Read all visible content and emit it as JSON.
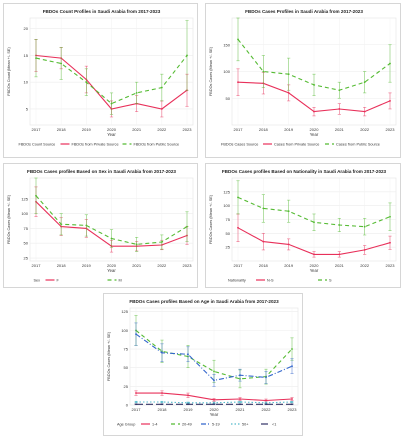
{
  "chart_data": [
    {
      "type": "line",
      "title": "FBDOs Count Profiles in Saudi Arabia from 2017-2023",
      "xlabel": "Year",
      "ylabel": "FBDOs Count (Mean +/- SE)",
      "categories": [
        "2017",
        "2018",
        "2019",
        "2020",
        "2021",
        "2022",
        "2023"
      ],
      "ylim": [
        2,
        22
      ],
      "yticks": [
        5,
        10,
        15,
        20
      ],
      "legend_title": "FBDOs Count Source",
      "legend_position": "bottom",
      "series": [
        {
          "name": "FBDOs from Private Source",
          "color": "#e8305a",
          "dash": "solid",
          "values": [
            15,
            14.5,
            10.5,
            5,
            6,
            5,
            8.5
          ],
          "errors": [
            3,
            2,
            2.5,
            1.5,
            1.5,
            1.5,
            3
          ]
        },
        {
          "name": "FBDOs from Public Source",
          "color": "#55bb33",
          "dash": "dashed",
          "values": [
            14.5,
            13.5,
            10,
            6,
            8,
            9,
            15
          ],
          "errors": [
            3.5,
            3,
            2.5,
            2,
            2,
            2.5,
            6.5
          ]
        }
      ]
    },
    {
      "type": "line",
      "title": "FBDOs Cases  Profiles in Saudi Arabia  from 2017-2023",
      "xlabel": "Year",
      "ylabel": "FBDOs Cases (Mean +/- SE)",
      "categories": [
        "2017",
        "2018",
        "2019",
        "2020",
        "2021",
        "2022",
        "2023"
      ],
      "ylim": [
        0,
        200
      ],
      "yticks": [
        50,
        100,
        150
      ],
      "legend_title": "FBDOs Cases Source",
      "legend_position": "bottom",
      "series": [
        {
          "name": "Cases from Private Source",
          "color": "#e8305a",
          "dash": "solid",
          "values": [
            80,
            78,
            60,
            25,
            30,
            25,
            45
          ],
          "errors": [
            25,
            20,
            15,
            8,
            10,
            8,
            15
          ]
        },
        {
          "name": "Cases from Public Source",
          "color": "#55bb33",
          "dash": "dashed",
          "values": [
            160,
            100,
            95,
            75,
            65,
            80,
            115
          ],
          "errors": [
            40,
            30,
            30,
            20,
            15,
            20,
            35
          ]
        }
      ]
    },
    {
      "type": "line",
      "title": "FBDOs Cases profiles Based on Sex in Saudi Arabia  from 2017-2023",
      "xlabel": "Year",
      "ylabel": "FBDOs Cases (Mean +/- SE)",
      "categories": [
        "2017",
        "2018",
        "2019",
        "2020",
        "2021",
        "2022",
        "2023"
      ],
      "ylim": [
        20,
        160
      ],
      "yticks": [
        25,
        50,
        75,
        100,
        125
      ],
      "legend_title": "Sex",
      "legend_position": "bottom",
      "series": [
        {
          "name": "F",
          "color": "#e8305a",
          "dash": "solid",
          "values": [
            120,
            78,
            75,
            45,
            45,
            47,
            63
          ],
          "errors": [
            25,
            15,
            15,
            10,
            8,
            8,
            15
          ]
        },
        {
          "name": "M",
          "color": "#55bb33",
          "dash": "dashed",
          "values": [
            130,
            82,
            80,
            58,
            48,
            52,
            78
          ],
          "errors": [
            30,
            18,
            18,
            15,
            12,
            12,
            25
          ]
        }
      ]
    },
    {
      "type": "line",
      "title": "FBDOs Cases profiles Based on Nationality in Saudi Arabia  from 2017-2023",
      "xlabel": "Year",
      "ylabel": "FBDOs Cases (Mean +/- SE)",
      "categories": [
        "2017",
        "2018",
        "2019",
        "2020",
        "2021",
        "2022",
        "2023"
      ],
      "ylim": [
        0,
        150
      ],
      "yticks": [
        25,
        50,
        75,
        100,
        125
      ],
      "legend_title": "Nationality",
      "legend_position": "bottom",
      "series": [
        {
          "name": "N-S",
          "color": "#e8305a",
          "dash": "solid",
          "values": [
            60,
            35,
            30,
            12,
            12,
            20,
            33
          ],
          "errors": [
            25,
            15,
            10,
            5,
            5,
            8,
            12
          ]
        },
        {
          "name": "S",
          "color": "#55bb33",
          "dash": "dashed",
          "values": [
            115,
            95,
            90,
            70,
            65,
            62,
            80
          ],
          "errors": [
            30,
            25,
            20,
            15,
            12,
            15,
            25
          ]
        }
      ]
    },
    {
      "type": "line",
      "title": "FBDOs Cases profiles Based on Age in Saudi Arabia  from 2017-2023",
      "xlabel": "Year",
      "ylabel": "FBDOs Cases (Mean +/- SE)",
      "categories": [
        "2017",
        "2018",
        "2019",
        "2020",
        "2021",
        "2022",
        "2023"
      ],
      "ylim": [
        0,
        130
      ],
      "yticks": [
        0,
        25,
        50,
        75,
        100,
        125
      ],
      "legend_title": "Age Group",
      "legend_position": "bottom",
      "series": [
        {
          "name": "1-4",
          "color": "#e8305a",
          "dash": "solid",
          "values": [
            16,
            16,
            13,
            7,
            8,
            6,
            8
          ],
          "errors": [
            3,
            3,
            3,
            2,
            2,
            2,
            2
          ]
        },
        {
          "name": "20-49",
          "color": "#55bb33",
          "dash": "dashed",
          "values": [
            100,
            72,
            65,
            45,
            35,
            38,
            75
          ],
          "errors": [
            20,
            15,
            15,
            15,
            12,
            10,
            15
          ]
        },
        {
          "name": "5-19",
          "color": "#3366cc",
          "dash": "dashdot",
          "values": [
            95,
            70,
            68,
            33,
            40,
            37,
            52
          ],
          "errors": [
            15,
            12,
            10,
            8,
            8,
            8,
            10
          ]
        },
        {
          "name": "50+",
          "color": "#55bbcc",
          "dash": "dotted",
          "values": [
            4,
            4,
            3,
            3,
            4,
            3,
            4
          ],
          "errors": [
            1,
            1,
            1,
            1,
            1,
            1,
            1
          ]
        },
        {
          "name": "<1",
          "color": "#333366",
          "dash": "longdash",
          "values": [
            1,
            1,
            1,
            1,
            1,
            1,
            1
          ],
          "errors": [
            0.5,
            0.5,
            0.5,
            0.5,
            0.5,
            0.5,
            0.5
          ]
        }
      ]
    }
  ]
}
